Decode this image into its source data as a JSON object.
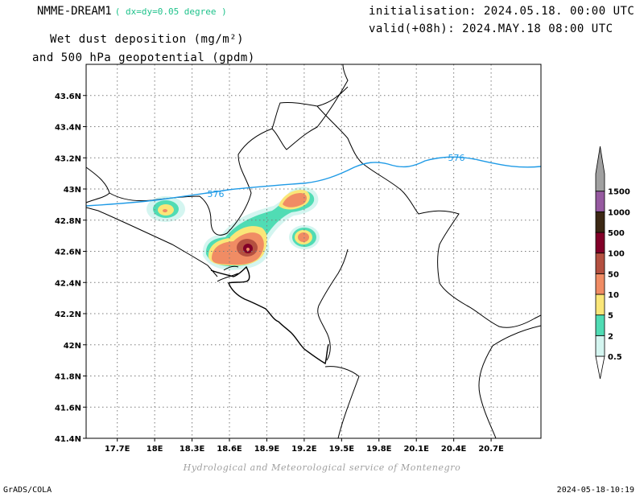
{
  "header": {
    "model": "NMME-DREAM1",
    "resolution": "( dx=dy=0.05 degree )",
    "title_line1": "Wet dust deposition (mg/m²)",
    "title_line2": "and 500 hPa geopotential (gpdm)",
    "initialisation": "initialisation: 2024.05.18. 00:00 UTC",
    "valid": "valid(+08h): 2024.MAY.18 08:00 UTC"
  },
  "map": {
    "lon_range": [
      17.45,
      21.1
    ],
    "lat_range": [
      41.4,
      43.8
    ],
    "lon_ticks": [
      {
        "v": 17.7,
        "label": "17.7E"
      },
      {
        "v": 18.0,
        "label": "18E"
      },
      {
        "v": 18.3,
        "label": "18.3E"
      },
      {
        "v": 18.6,
        "label": "18.6E"
      },
      {
        "v": 18.9,
        "label": "18.9E"
      },
      {
        "v": 19.2,
        "label": "19.2E"
      },
      {
        "v": 19.5,
        "label": "19.5E"
      },
      {
        "v": 19.8,
        "label": "19.8E"
      },
      {
        "v": 20.1,
        "label": "20.1E"
      },
      {
        "v": 20.4,
        "label": "20.4E"
      },
      {
        "v": 20.7,
        "label": "20.7E"
      }
    ],
    "lat_ticks": [
      {
        "v": 43.6,
        "label": "43.6N"
      },
      {
        "v": 43.4,
        "label": "43.4N"
      },
      {
        "v": 43.2,
        "label": "43.2N"
      },
      {
        "v": 43.0,
        "label": "43N"
      },
      {
        "v": 42.8,
        "label": "42.8N"
      },
      {
        "v": 42.6,
        "label": "42.6N"
      },
      {
        "v": 42.4,
        "label": "42.4N"
      },
      {
        "v": 42.2,
        "label": "42.2N"
      },
      {
        "v": 42.0,
        "label": "42N"
      },
      {
        "v": 41.8,
        "label": "41.8N"
      },
      {
        "v": 41.6,
        "label": "41.6N"
      },
      {
        "v": 41.4,
        "label": "41.4N"
      }
    ],
    "contour_label": "576"
  },
  "legend": {
    "levels": [
      {
        "label": "0.5",
        "color": "#d4f5f0"
      },
      {
        "label": "2",
        "color": "#50dcb4"
      },
      {
        "label": "5",
        "color": "#fae678"
      },
      {
        "label": "10",
        "color": "#f08c64"
      },
      {
        "label": "50",
        "color": "#b45040"
      },
      {
        "label": "100",
        "color": "#820028"
      },
      {
        "label": "500",
        "color": "#3c2814"
      },
      {
        "label": "1000",
        "color": "#965aa0"
      },
      {
        "label": "1500",
        "color": "#a0a0a0"
      }
    ]
  },
  "footer": {
    "credit": "Hydrological and Meteorological service of Montenegro",
    "software": "GrADS/COLA",
    "timestamp": "2024-05-18-10:19"
  }
}
